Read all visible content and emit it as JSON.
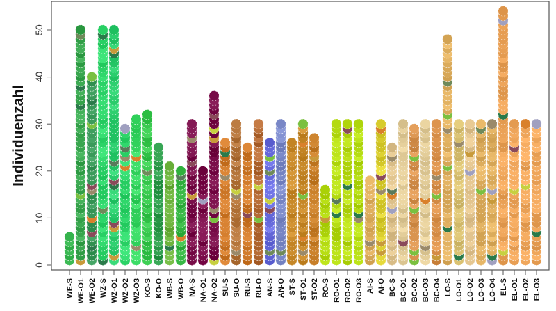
{
  "chart_data": {
    "type": "scatter",
    "subtype": "stacked-dot-columns",
    "title": "",
    "xlabel": "",
    "ylabel": "Individuenzahl",
    "ylim": [
      0,
      55
    ],
    "yticks": [
      0,
      10,
      20,
      30,
      40,
      50
    ],
    "grid": false,
    "legend": "none",
    "categories": [
      "WE-S",
      "WE-O1",
      "WE-O2",
      "WZ-S",
      "WZ-O1",
      "WZ-O2",
      "WZ-O3",
      "KO-S",
      "KO-O",
      "WB-S",
      "WB-O",
      "NA-S",
      "NA-O1",
      "NA-O2",
      "SU-S",
      "SU-O",
      "RU-S",
      "RU-O",
      "AN-S",
      "AN-O",
      "ST-S",
      "ST-O1",
      "ST-O2",
      "RO-S",
      "RO-O1",
      "RO-O2",
      "RO-O3",
      "AI-S",
      "AI-O",
      "BC-S",
      "BC-O1",
      "BC-O2",
      "BC-O3",
      "BC-O4",
      "LO-S",
      "LO-O1",
      "LO-O2",
      "LO-O3",
      "LO-O4",
      "EL-S",
      "EL-O1",
      "EL-O2",
      "EL-O3"
    ],
    "values": [
      6,
      50,
      40,
      50,
      50,
      29,
      31,
      32,
      25,
      21,
      20,
      30,
      20,
      36,
      26,
      30,
      25,
      30,
      26,
      30,
      26,
      30,
      27,
      16,
      30,
      30,
      30,
      18,
      30,
      25,
      30,
      29,
      30,
      30,
      48,
      30,
      30,
      30,
      30,
      54,
      30,
      30,
      30
    ],
    "group_colors": {
      "WE": "#3dbb55",
      "WZ": "#2ed66a",
      "KO": "#38c94e",
      "WB": "#3aa84a",
      "NA": "#7a0f4a",
      "SU": "#c77a30",
      "RU": "#c9792c",
      "AN": "#6a6ee0",
      "ST": "#c98a2a",
      "RO": "#b5dc12",
      "AI": "#dcd030",
      "BC": "#e2c48e",
      "LO": "#e0b060",
      "EL": "#eea55a"
    },
    "column_colors": [
      "#3dbb55",
      "#3aa850",
      "#3a9a5a",
      "#2ed66a",
      "#2fd070",
      "#2ed66a",
      "#35d660",
      "#38c94e",
      "#2f9e4d",
      "#6ab03a",
      "#38b845",
      "#7a0f4a",
      "#7d0f4c",
      "#780c48",
      "#d07a2a",
      "#b4743a",
      "#d07a2a",
      "#b46a34",
      "#6a6ee0",
      "#7a88c8",
      "#c98a2a",
      "#c98a2a",
      "#c9802a",
      "#b5dc12",
      "#b5dc12",
      "#b8dc14",
      "#b5dc12",
      "#e0b060",
      "#dcd030",
      "#e0c48e",
      "#e2cc98",
      "#d99450",
      "#e2cc98",
      "#d9904a",
      "#e0b060",
      "#d8c070",
      "#e2c48e",
      "#e0b060",
      "#e0b060",
      "#eea55a",
      "#eea55a",
      "#eea55a",
      "#eea55a"
    ],
    "accent_colors": [
      "#6f8a5a",
      "#9a8a6a",
      "#5a7a5a",
      "#2a7a4a",
      "#c89a3a",
      "#a0a0c0",
      "#8a4a5a",
      "#d9802a",
      "#c7d040",
      "#7ac040"
    ]
  }
}
